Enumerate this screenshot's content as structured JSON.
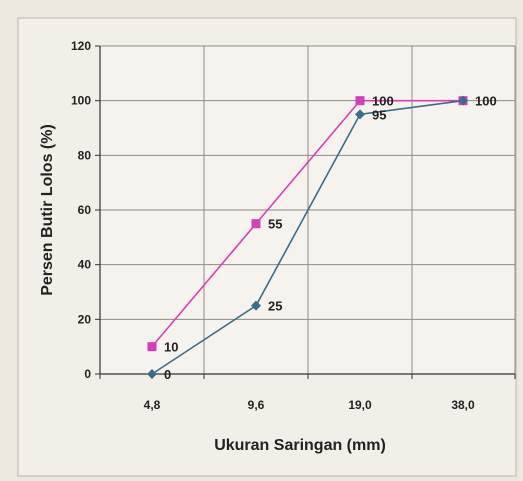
{
  "chart_data": {
    "type": "line",
    "title": "",
    "xlabel": "Ukuran Saringan (mm)",
    "ylabel": "Persen Butir Lolos (%)",
    "categories": [
      "4,8",
      "9,6",
      "19,0",
      "38,0"
    ],
    "ylim": [
      0,
      120
    ],
    "yticks": [
      "0",
      "20",
      "40",
      "60",
      "80",
      "100",
      "120"
    ],
    "grid": true,
    "legend": "none",
    "series": [
      {
        "values": [
          10,
          55,
          100,
          100
        ],
        "labels": [
          "10",
          "55",
          "100",
          "100"
        ],
        "color": "#d63fb8",
        "marker": "square"
      },
      {
        "values": [
          0,
          25,
          95,
          100
        ],
        "labels": [
          "0",
          "25",
          "95",
          ""
        ],
        "color": "#3d6b8a",
        "marker": "diamond"
      }
    ]
  }
}
